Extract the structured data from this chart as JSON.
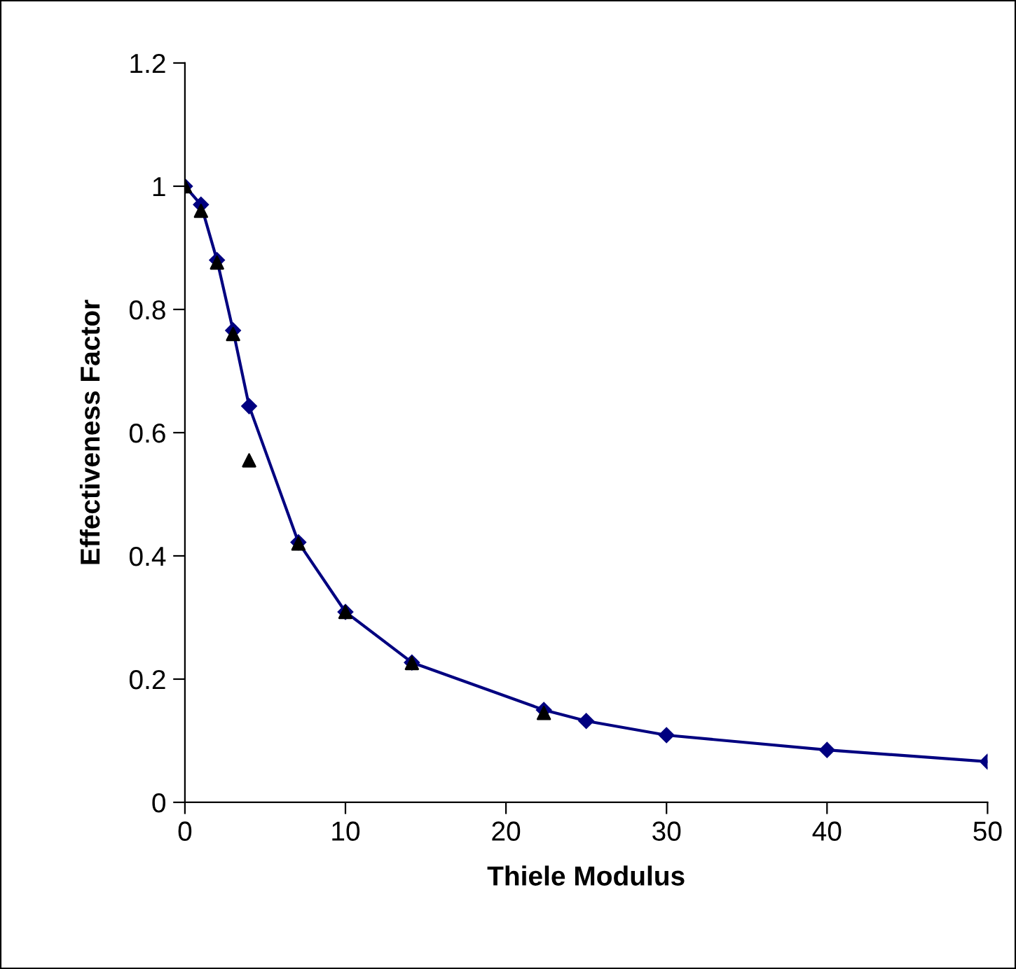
{
  "chart_data": {
    "type": "line",
    "xlabel": "Thiele Modulus",
    "ylabel": "Effectiveness Factor",
    "xlim": [
      0,
      50
    ],
    "xticks": [
      0,
      10,
      20,
      30,
      40,
      50
    ],
    "ylim": [
      0,
      1.2
    ],
    "yticks": [
      0,
      0.2,
      0.4,
      0.6,
      0.8,
      1,
      1.2
    ],
    "grid": false,
    "series": [
      {
        "color": "#000080",
        "marker": "diamond",
        "line_style": "solid",
        "x": [
          0,
          1,
          2,
          3,
          4,
          7.07,
          10,
          14.14,
          22.36,
          25,
          30,
          40,
          50
        ],
        "values": [
          1.0,
          0.97,
          0.88,
          0.766,
          0.643,
          0.422,
          0.309,
          0.227,
          0.15,
          0.132,
          0.109,
          0.085,
          0.066
        ]
      },
      {
        "type": "scatter",
        "color": "#000000",
        "marker": "triangle",
        "x": [
          0,
          1,
          2,
          3,
          4,
          7.07,
          10,
          14.14,
          22.36
        ],
        "values": [
          1.0,
          0.96,
          0.876,
          0.76,
          0.555,
          0.42,
          0.309,
          0.226,
          0.145
        ]
      }
    ]
  }
}
